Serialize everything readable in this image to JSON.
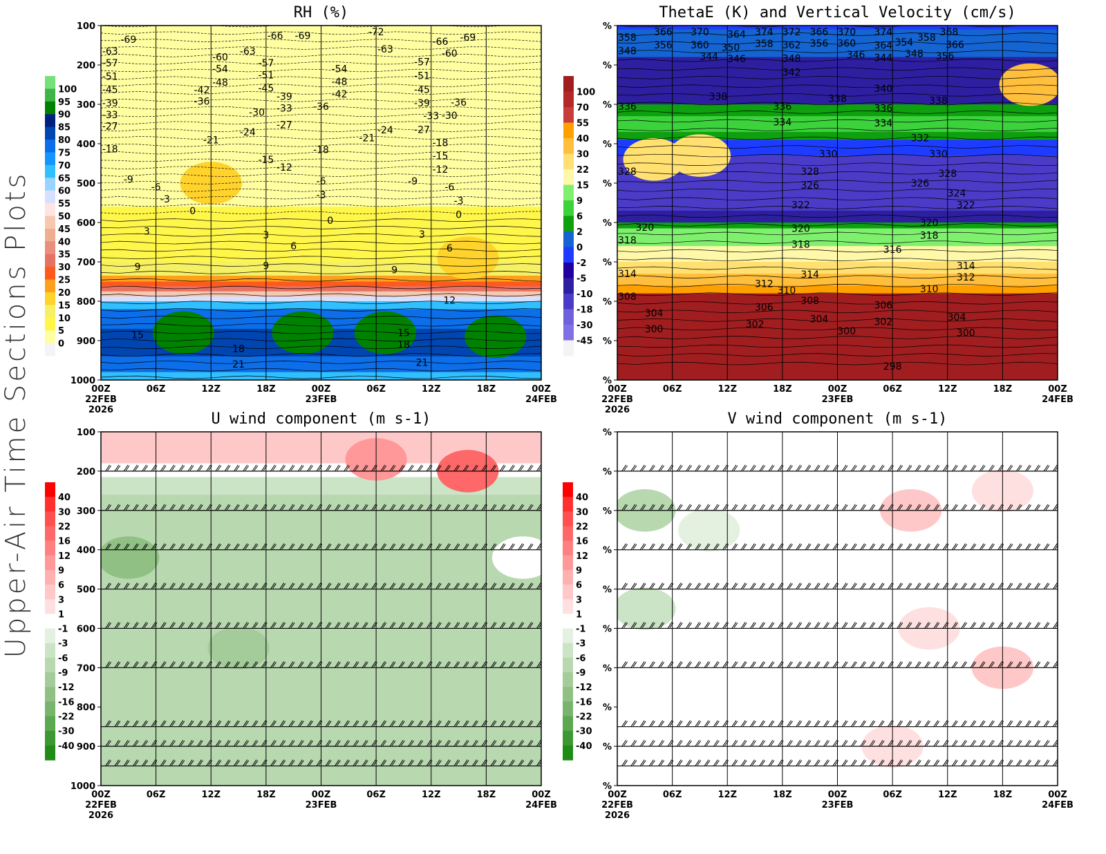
{
  "side_title": "Upper-Air Time Sections Plots",
  "x_ticks": [
    "00Z",
    "06Z",
    "12Z",
    "18Z",
    "00Z",
    "06Z",
    "12Z",
    "18Z",
    "00Z"
  ],
  "x_dates": {
    "start": [
      "22FEB",
      "2026"
    ],
    "mid": "23FEB",
    "end": "24FEB"
  },
  "chart_data": [
    {
      "type": "heatmap",
      "title": "RH (%)",
      "y_ticks": [
        "100",
        "200",
        "300",
        "400",
        "500",
        "600",
        "700",
        "800",
        "900",
        "1000"
      ],
      "ylim": [
        100,
        1000
      ],
      "y_reversed": true,
      "colorbar": {
        "labels": [
          "100",
          "95",
          "90",
          "85",
          "80",
          "75",
          "70",
          "65",
          "60",
          "55",
          "50",
          "45",
          "40",
          "35",
          "30",
          "25",
          "20",
          "15",
          "10",
          "5",
          "0"
        ],
        "colors": [
          "#77e07a",
          "#3fb548",
          "#008200",
          "#002080",
          "#0045b0",
          "#0c6ee8",
          "#1496ff",
          "#30c0ff",
          "#9ad3ff",
          "#d8e0ff",
          "#ffe4e4",
          "#f7c8b0",
          "#eeae90",
          "#ea8e7e",
          "#e67264",
          "#ff5a1c",
          "#ffa01c",
          "#ffd22c",
          "#f6f064",
          "#fff64a",
          "#fffea0",
          "#f4f4f4"
        ]
      },
      "bands": [
        [
          100,
          560,
          "#fffea0"
        ],
        [
          560,
          700,
          "#fff64a"
        ],
        [
          700,
          735,
          "#f6f064"
        ],
        [
          735,
          750,
          "#ffa01c"
        ],
        [
          750,
          762,
          "#ff5a1c"
        ],
        [
          762,
          775,
          "#e67264"
        ],
        [
          775,
          788,
          "#f7c8b0"
        ],
        [
          788,
          800,
          "#d8e0ff"
        ],
        [
          800,
          820,
          "#30c0ff"
        ],
        [
          820,
          870,
          "#0c6ee8"
        ],
        [
          870,
          940,
          "#0045b0"
        ],
        [
          940,
          980,
          "#0c6ee8"
        ],
        [
          980,
          1000,
          "#30c0ff"
        ]
      ],
      "blobs": [
        [
          9,
          880,
          "#008200"
        ],
        [
          22,
          880,
          "#008200"
        ],
        [
          31,
          880,
          "#008200"
        ],
        [
          43,
          890,
          "#008200"
        ],
        [
          12,
          500,
          "#ffd22c"
        ],
        [
          40,
          690,
          "#ffd22c"
        ]
      ],
      "contour_labels": [
        [
          "22FEB03Z",
          135,
          "-69"
        ],
        [
          "22FEB01Z",
          165,
          "-63"
        ],
        [
          "22FEB01Z",
          195,
          "-57"
        ],
        [
          "22FEB01Z",
          222,
          "-51"
        ],
        [
          "22FEB01Z",
          248,
          "-45"
        ],
        [
          "22FEB01Z",
          275,
          "-39"
        ],
        [
          "22FEB01Z",
          305,
          "-33"
        ],
        [
          "22FEB01Z",
          355,
          "-27"
        ],
        [
          "22FEB01Z",
          413,
          "-18"
        ],
        [
          "22FEB03Z",
          490,
          "-9"
        ],
        [
          "22FEB06Z",
          510,
          "-6"
        ],
        [
          "22FEB07Z",
          533,
          "-3"
        ],
        [
          "22FEB10Z",
          570,
          "0"
        ],
        [
          "22FEB05Z",
          622,
          "3"
        ],
        [
          "22FEB04Z",
          712,
          "9"
        ],
        [
          "22FEB04Z",
          885,
          "15"
        ],
        [
          "22FEB15Z",
          920,
          "18"
        ],
        [
          "22FEB15Z",
          960,
          "21"
        ],
        [
          "22FEB13Z",
          180,
          "-60"
        ],
        [
          "22FEB13Z",
          210,
          "-54"
        ],
        [
          "22FEB13Z",
          230,
          "-48"
        ],
        [
          "22FEB11Z",
          263,
          "-42"
        ],
        [
          "22FEB11Z",
          292,
          "-36"
        ],
        [
          "22FEB17Z",
          320,
          "-30"
        ],
        [
          "22FEB16Z",
          370,
          "-24"
        ],
        [
          "22FEB12Z",
          390,
          "-21"
        ],
        [
          "22FEB18Z",
          440,
          "-15"
        ],
        [
          "22FEB20Z",
          460,
          "-12"
        ],
        [
          "22FEB19Z",
          125,
          "-66"
        ],
        [
          "22FEB22Z",
          125,
          "-69"
        ],
        [
          "22FEB16Z",
          165,
          "-63"
        ],
        [
          "22FEB18Z",
          195,
          "-57"
        ],
        [
          "22FEB18Z",
          225,
          "-51"
        ],
        [
          "22FEB18Z",
          252,
          "-45"
        ],
        [
          "22FEB20Z",
          280,
          "-39"
        ],
        [
          "22FEB20Z",
          310,
          "-33"
        ],
        [
          "22FEB20Z",
          352,
          "-27"
        ],
        [
          "23FEB00Z",
          415,
          "-18"
        ],
        [
          "22FEB18Z",
          632,
          "3"
        ],
        [
          "22FEB21Z",
          660,
          "6"
        ],
        [
          "22FEB18Z",
          710,
          "9"
        ],
        [
          "23FEB00Z",
          305,
          "-36"
        ],
        [
          "23FEB02Z",
          210,
          "-54"
        ],
        [
          "23FEB02Z",
          235,
          "-48"
        ],
        [
          "23FEB02Z",
          260,
          "-42"
        ],
        [
          "23FEB06Z",
          110,
          "-72"
        ],
        [
          "23FEB07Z",
          160,
          "-63"
        ],
        [
          "23FEB05Z",
          385,
          "-21"
        ],
        [
          "23FEB07Z",
          365,
          "-24"
        ],
        [
          "23FEB00Z",
          495,
          "-6"
        ],
        [
          "23FEB00Z",
          530,
          "-3"
        ],
        [
          "23FEB01Z",
          595,
          "0"
        ],
        [
          "23FEB11Z",
          630,
          "3"
        ],
        [
          "23FEB08Z",
          720,
          "9"
        ],
        [
          "23FEB09Z",
          880,
          "15"
        ],
        [
          "23FEB09Z",
          910,
          "18"
        ],
        [
          "23FEB11Z",
          955,
          "21"
        ],
        [
          "23FEB11Z",
          192,
          "-57"
        ],
        [
          "23FEB11Z",
          220,
          "-51"
        ],
        [
          "23FEB11Z",
          248,
          "-45"
        ],
        [
          "23FEB11Z",
          275,
          "-39"
        ],
        [
          "23FEB12Z",
          315,
          "-33"
        ],
        [
          "23FEB11Z",
          350,
          "-27"
        ],
        [
          "23FEB10Z",
          495,
          "-9"
        ],
        [
          "23FEB13Z",
          465,
          "-12"
        ],
        [
          "23FEB13Z",
          445,
          "-15"
        ],
        [
          "23FEB13Z",
          418,
          "-18"
        ],
        [
          "23FEB13Z",
          140,
          "-66"
        ],
        [
          "23FEB14Z",
          170,
          "-60"
        ],
        [
          "23FEB16Z",
          130,
          "-69"
        ],
        [
          "23FEB15Z",
          295,
          "-36"
        ],
        [
          "23FEB14Z",
          328,
          "-30"
        ],
        [
          "23FEB14Z",
          510,
          "-6"
        ],
        [
          "23FEB15Z",
          545,
          "-3"
        ],
        [
          "23FEB15Z",
          580,
          "0"
        ],
        [
          "23FEB14Z",
          665,
          "6"
        ],
        [
          "23FEB14Z",
          797,
          "12"
        ]
      ]
    },
    {
      "type": "heatmap",
      "title": "ThetaE (K) and Vertical Velocity (cm/s)",
      "y_tick_label": "%",
      "ylim": [
        100,
        1000
      ],
      "colorbar": {
        "labels": [
          "100",
          "70",
          "55",
          "40",
          "30",
          "22",
          "15",
          "9",
          "6",
          "2",
          "0",
          "-2",
          "-5",
          "-10",
          "-18",
          "-30",
          "-45"
        ],
        "colors": [
          "#a01e20",
          "#b42828",
          "#c83c3c",
          "#ffa000",
          "#ffbe3c",
          "#ffe070",
          "#fff8a8",
          "#7ff06e",
          "#3cd23c",
          "#0ea00e",
          "#1464d2",
          "#1e3cff",
          "#2000a0",
          "#2d1fa0",
          "#4b3cc8",
          "#7060dc",
          "#8070e6",
          "#f4f4f4"
        ]
      },
      "bands": [
        [
          100,
          110,
          "#1e3cff"
        ],
        [
          110,
          180,
          "#1464d2"
        ],
        [
          180,
          300,
          "#2d1fa0"
        ],
        [
          300,
          330,
          "#0ea00e"
        ],
        [
          330,
          370,
          "#3cd23c"
        ],
        [
          370,
          390,
          "#0ea00e"
        ],
        [
          390,
          430,
          "#1e3cff"
        ],
        [
          430,
          570,
          "#4b3cc8"
        ],
        [
          570,
          600,
          "#2d1fa0"
        ],
        [
          600,
          615,
          "#0ea00e"
        ],
        [
          615,
          660,
          "#7ff06e"
        ],
        [
          660,
          700,
          "#fff8a8"
        ],
        [
          700,
          730,
          "#ffe070"
        ],
        [
          730,
          760,
          "#ffbe3c"
        ],
        [
          760,
          780,
          "#ffa000"
        ],
        [
          780,
          1000,
          "#a01e20"
        ]
      ],
      "blobs": [
        [
          9,
          430,
          "#ffe070"
        ],
        [
          4,
          440,
          "#ffe070"
        ],
        [
          45,
          250,
          "#ffbe3c"
        ]
      ],
      "contour_labels": [
        [
          "22FEB01Z",
          130,
          "358"
        ],
        [
          "22FEB05Z",
          110,
          "366"
        ],
        [
          "22FEB05Z",
          135,
          "356"
        ],
        [
          "22FEB01Z",
          150,
          "348"
        ],
        [
          "22FEB09Z",
          105,
          "370"
        ],
        [
          "22FEB09Z",
          128,
          "360"
        ],
        [
          "22FEB10Z",
          178,
          "344"
        ],
        [
          "22FEB11Z",
          155,
          "350"
        ],
        [
          "22FEB13Z",
          163,
          "346"
        ],
        [
          "22FEB13Z",
          122,
          "364"
        ],
        [
          "22FEB16Z",
          100,
          "374"
        ],
        [
          "22FEB16Z",
          132,
          "358"
        ],
        [
          "22FEB19Z",
          115,
          "372"
        ],
        [
          "22FEB19Z",
          128,
          "362"
        ],
        [
          "22FEB19Z",
          155,
          "348"
        ],
        [
          "22FEB19Z",
          190,
          "342"
        ],
        [
          "22FEB22Z",
          115,
          "366"
        ],
        [
          "22FEB22Z",
          138,
          "356"
        ],
        [
          "23FEB01Z",
          115,
          "370"
        ],
        [
          "23FEB01Z",
          138,
          "360"
        ],
        [
          "23FEB05Z",
          108,
          "374"
        ],
        [
          "23FEB05Z",
          122,
          "364"
        ],
        [
          "23FEB05Z",
          142,
          "354"
        ],
        [
          "23FEB02Z",
          160,
          "346"
        ],
        [
          "23FEB05Z",
          182,
          "344"
        ],
        [
          "23FEB07Z",
          130,
          "358"
        ],
        [
          "23FEB07Z",
          150,
          "348"
        ],
        [
          "23FEB09Z",
          115,
          "368"
        ],
        [
          "23FEB11Z",
          120,
          "366"
        ],
        [
          "23FEB09Z",
          135,
          "356"
        ],
        [
          "22FEB01Z",
          305,
          "336"
        ],
        [
          "22FEB11Z",
          280,
          "338"
        ],
        [
          "22FEB18Z",
          305,
          "336"
        ],
        [
          "22FEB18Z",
          345,
          "334"
        ],
        [
          "23FEB00Z",
          285,
          "338"
        ],
        [
          "23FEB05Z",
          260,
          "340"
        ],
        [
          "23FEB05Z",
          310,
          "336"
        ],
        [
          "23FEB05Z",
          347,
          "334"
        ],
        [
          "23FEB11Z",
          290,
          "338"
        ],
        [
          "23FEB09Z",
          385,
          "332"
        ],
        [
          "22FEB01Z",
          470,
          "328"
        ],
        [
          "22FEB23Z",
          425,
          "330"
        ],
        [
          "22FEB21Z",
          470,
          "328"
        ],
        [
          "22FEB21Z",
          505,
          "326"
        ],
        [
          "23FEB11Z",
          425,
          "330"
        ],
        [
          "23FEB12Z",
          475,
          "328"
        ],
        [
          "23FEB09Z",
          500,
          "326"
        ],
        [
          "23FEB13Z",
          525,
          "324"
        ],
        [
          "23FEB14Z",
          555,
          "322"
        ],
        [
          "22FEB20Z",
          555,
          "322"
        ],
        [
          "22FEB20Z",
          615,
          "320"
        ],
        [
          "22FEB20Z",
          655,
          "318"
        ],
        [
          "22FEB03Z",
          612,
          "320"
        ],
        [
          "22FEB01Z",
          645,
          "318"
        ],
        [
          "23FEB10Z",
          600,
          "320"
        ],
        [
          "23FEB10Z",
          625,
          "318"
        ],
        [
          "23FEB06Z",
          668,
          "316"
        ],
        [
          "23FEB14Z",
          710,
          "314"
        ],
        [
          "23FEB14Z",
          732,
          "312"
        ],
        [
          "22FEB01Z",
          730,
          "314"
        ],
        [
          "22FEB21Z",
          732,
          "314"
        ],
        [
          "22FEB16Z",
          755,
          "312"
        ],
        [
          "22FEB18Z",
          772,
          "310"
        ],
        [
          "23FEB10Z",
          768,
          "310"
        ],
        [
          "22FEB01Z",
          788,
          "308"
        ],
        [
          "22FEB21Z",
          798,
          "308"
        ],
        [
          "22FEB16Z",
          815,
          "306"
        ],
        [
          "23FEB05Z",
          810,
          "306"
        ],
        [
          "22FEB04Z",
          830,
          "304"
        ],
        [
          "22FEB22Z",
          845,
          "304"
        ],
        [
          "23FEB13Z",
          840,
          "304"
        ],
        [
          "22FEB15Z",
          858,
          "302"
        ],
        [
          "23FEB05Z",
          852,
          "302"
        ],
        [
          "22FEB04Z",
          870,
          "300"
        ],
        [
          "23FEB01Z",
          875,
          "300"
        ],
        [
          "23FEB14Z",
          880,
          "300"
        ],
        [
          "23FEB06Z",
          965,
          "298"
        ]
      ]
    },
    {
      "type": "heatmap",
      "title": "U wind component (m s-1)",
      "y_ticks": [
        "100",
        "200",
        "300",
        "400",
        "500",
        "600",
        "700",
        "800",
        "900",
        "1000"
      ],
      "ylim": [
        100,
        1000
      ],
      "colorbar": {
        "labels": [
          "40",
          "30",
          "22",
          "16",
          "12",
          "9",
          "6",
          "3",
          "1",
          "-1",
          "-3",
          "-6",
          "-9",
          "-12",
          "-16",
          "-22",
          "-30",
          "-40"
        ],
        "pos_colors": [
          "#ff0000",
          "#ff3030",
          "#ff5050",
          "#ff6868",
          "#ff8080",
          "#ff9898",
          "#ffb0b0",
          "#ffc8c8",
          "#ffe0e0",
          "#ffffff"
        ],
        "neg_colors": [
          "#e4f0e0",
          "#cce4c6",
          "#b8d8b0",
          "#a4cc9a",
          "#90c084",
          "#78b46c",
          "#5ca850",
          "#3c9832",
          "#1e8c16"
        ]
      },
      "bands": [
        [
          100,
          180,
          "#ffc8c8"
        ],
        [
          180,
          215,
          "#ffffff"
        ],
        [
          215,
          260,
          "#cce4c6"
        ],
        [
          260,
          1000,
          "#b8d8b0"
        ]
      ],
      "blobs": [
        [
          40,
          200,
          "#ff6868"
        ],
        [
          30,
          170,
          "#ff9898"
        ],
        [
          3,
          420,
          "#90c084"
        ],
        [
          15,
          650,
          "#a4cc9a"
        ],
        [
          46,
          420,
          "#ffffff"
        ]
      ],
      "barb_levels": [
        200,
        300,
        400,
        500,
        600,
        700,
        850,
        900,
        950
      ]
    },
    {
      "type": "heatmap",
      "title": "V wind component (m s-1)",
      "y_tick_label": "%",
      "ylim": [
        100,
        1000
      ],
      "bands": [
        [
          100,
          1000,
          "#ffffff"
        ]
      ],
      "blobs": [
        [
          3,
          300,
          "#b8d8b0"
        ],
        [
          3,
          550,
          "#cce4c6"
        ],
        [
          10,
          350,
          "#e4f0e0"
        ],
        [
          32,
          300,
          "#ffc8c8"
        ],
        [
          34,
          600,
          "#ffe0e0"
        ],
        [
          30,
          900,
          "#ffe0e0"
        ],
        [
          42,
          700,
          "#ffc8c8"
        ],
        [
          42,
          250,
          "#ffe0e0"
        ]
      ],
      "barb_levels": [
        200,
        300,
        400,
        500,
        600,
        700,
        850,
        900,
        950
      ]
    }
  ]
}
